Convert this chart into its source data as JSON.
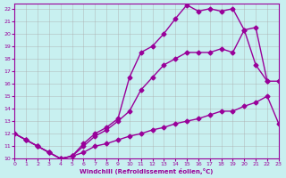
{
  "xlabel": "Windchill (Refroidissement éolien,°C)",
  "bg_color": "#c8f0f0",
  "line_color": "#990099",
  "xlim": [
    0,
    23
  ],
  "ylim": [
    10,
    22.4
  ],
  "xticks": [
    0,
    1,
    2,
    3,
    4,
    5,
    6,
    7,
    8,
    9,
    10,
    11,
    12,
    13,
    14,
    15,
    16,
    17,
    18,
    19,
    20,
    21,
    22,
    23
  ],
  "yticks": [
    10,
    11,
    12,
    13,
    14,
    15,
    16,
    17,
    18,
    19,
    20,
    21,
    22
  ],
  "line1_x": [
    0,
    1,
    2,
    3,
    4,
    5,
    6,
    7,
    8,
    9,
    10,
    11,
    12,
    13,
    14,
    15,
    16,
    17,
    18,
    19,
    20,
    21,
    22,
    23
  ],
  "line1_y": [
    12.0,
    11.5,
    11.0,
    10.5,
    10.0,
    10.2,
    10.5,
    11.0,
    11.2,
    11.5,
    11.8,
    12.0,
    12.3,
    12.5,
    12.8,
    13.0,
    13.2,
    13.5,
    13.8,
    13.8,
    14.2,
    14.5,
    15.0,
    12.8
  ],
  "line2_x": [
    0,
    1,
    2,
    3,
    4,
    5,
    6,
    7,
    8,
    9,
    10,
    11,
    12,
    13,
    14,
    15,
    16,
    17,
    18,
    19,
    20,
    21,
    22,
    23
  ],
  "line2_y": [
    12.0,
    11.5,
    11.0,
    10.5,
    10.0,
    10.2,
    11.0,
    11.8,
    12.3,
    13.0,
    13.8,
    15.5,
    16.5,
    17.5,
    18.0,
    18.5,
    18.5,
    18.5,
    18.8,
    18.5,
    20.3,
    17.5,
    16.2,
    16.2
  ],
  "line3_x": [
    0,
    1,
    2,
    3,
    4,
    5,
    6,
    7,
    8,
    9,
    10,
    11,
    12,
    13,
    14,
    15,
    16,
    17,
    18,
    19,
    20,
    21,
    22
  ],
  "line3_y": [
    12.0,
    11.5,
    11.0,
    10.5,
    10.0,
    10.2,
    11.2,
    12.0,
    12.5,
    13.2,
    16.5,
    18.5,
    19.0,
    20.0,
    21.2,
    22.3,
    21.8,
    22.0,
    21.8,
    22.0,
    20.3,
    20.5,
    16.2
  ],
  "grid_color": "#aaaaaa",
  "marker": "D",
  "markersize": 2.5,
  "linewidth": 1.0
}
